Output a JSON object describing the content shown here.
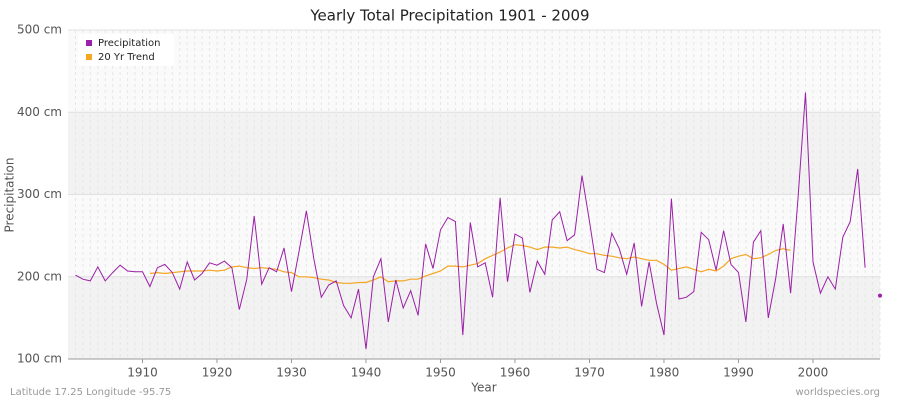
{
  "chart_data": {
    "type": "line",
    "title": "Yearly Total Precipitation 1901 - 2009",
    "x_label": "Year",
    "y_label": "Precipitation",
    "footer_left": "Latitude 17.25 Longitude -95.75",
    "footer_right": "worldspecies.org",
    "x": [
      1901,
      1902,
      1903,
      1904,
      1905,
      1906,
      1907,
      1908,
      1909,
      1910,
      1911,
      1912,
      1913,
      1914,
      1915,
      1916,
      1917,
      1918,
      1919,
      1920,
      1921,
      1922,
      1923,
      1924,
      1925,
      1926,
      1927,
      1928,
      1929,
      1930,
      1931,
      1932,
      1933,
      1934,
      1935,
      1936,
      1937,
      1938,
      1939,
      1940,
      1941,
      1942,
      1943,
      1944,
      1945,
      1946,
      1947,
      1948,
      1949,
      1950,
      1951,
      1952,
      1953,
      1954,
      1955,
      1956,
      1957,
      1958,
      1959,
      1960,
      1961,
      1962,
      1963,
      1964,
      1965,
      1966,
      1967,
      1968,
      1969,
      1970,
      1971,
      1972,
      1973,
      1974,
      1975,
      1976,
      1977,
      1978,
      1979,
      1980,
      1981,
      1982,
      1983,
      1984,
      1985,
      1986,
      1987,
      1988,
      1989,
      1990,
      1991,
      1992,
      1993,
      1994,
      1995,
      1996,
      1997,
      1998,
      1999,
      2000,
      2001,
      2002,
      2003,
      2004,
      2005,
      2006,
      2007,
      2008,
      2009
    ],
    "series": [
      {
        "name": "Precipitation",
        "color": "#9b1fa8",
        "values": [
          202,
          197,
          195,
          212,
          195,
          205,
          214,
          207,
          206,
          206,
          188,
          211,
          215,
          205,
          185,
          218,
          196,
          204,
          217,
          214,
          219,
          211,
          160,
          197,
          274,
          191,
          211,
          206,
          235,
          182,
          230,
          280,
          222,
          175,
          190,
          195,
          165,
          150,
          185,
          112,
          200,
          222,
          145,
          196,
          162,
          183,
          153,
          240,
          210,
          257,
          272,
          267,
          129,
          266,
          212,
          217,
          175,
          296,
          194,
          252,
          247,
          181,
          219,
          203,
          269,
          279,
          244,
          251,
          323,
          267,
          209,
          205,
          253,
          234,
          203,
          241,
          164,
          218,
          168,
          129,
          295,
          173,
          175,
          182,
          254,
          245,
          208,
          256,
          215,
          205,
          145,
          242,
          256,
          150,
          198,
          264,
          180,
          297,
          424,
          218,
          180,
          200,
          185,
          248,
          267,
          331,
          211,
          null,
          177
        ]
      },
      {
        "name": "20 Yr Trend",
        "color": "#f5a623",
        "values": [
          null,
          null,
          null,
          null,
          null,
          null,
          null,
          null,
          null,
          null,
          204,
          205,
          204,
          205,
          206,
          207,
          207,
          207,
          208,
          207,
          208,
          212,
          213,
          211,
          210,
          211,
          210,
          209,
          206,
          205,
          200,
          200,
          199,
          197,
          196,
          193,
          192,
          192,
          193,
          193,
          196,
          200,
          194,
          195,
          195,
          197,
          197,
          201,
          204,
          207,
          213,
          213,
          212,
          214,
          216,
          222,
          226,
          230,
          235,
          239,
          238,
          236,
          233,
          236,
          236,
          235,
          236,
          233,
          231,
          228,
          228,
          226,
          225,
          223,
          222,
          224,
          222,
          220,
          220,
          215,
          208,
          210,
          212,
          209,
          206,
          209,
          207,
          213,
          222,
          225,
          227,
          222,
          223,
          227,
          232,
          234,
          232,
          null,
          null,
          null,
          null,
          null,
          null,
          null,
          null,
          null,
          null,
          null,
          null
        ]
      }
    ],
    "xlim": [
      1900,
      2009
    ],
    "xticks": [
      1910,
      1920,
      1930,
      1940,
      1950,
      1960,
      1970,
      1980,
      1990,
      2000
    ],
    "ylim": [
      100,
      500
    ],
    "yticks": [
      {
        "value": 100,
        "label": "100 cm"
      },
      {
        "value": 200,
        "label": "200 cm"
      },
      {
        "value": 300,
        "label": "300 cm"
      },
      {
        "value": 400,
        "label": "400 cm"
      },
      {
        "value": 500,
        "label": "500 cm"
      }
    ],
    "grid": true,
    "legend": "top-left"
  }
}
